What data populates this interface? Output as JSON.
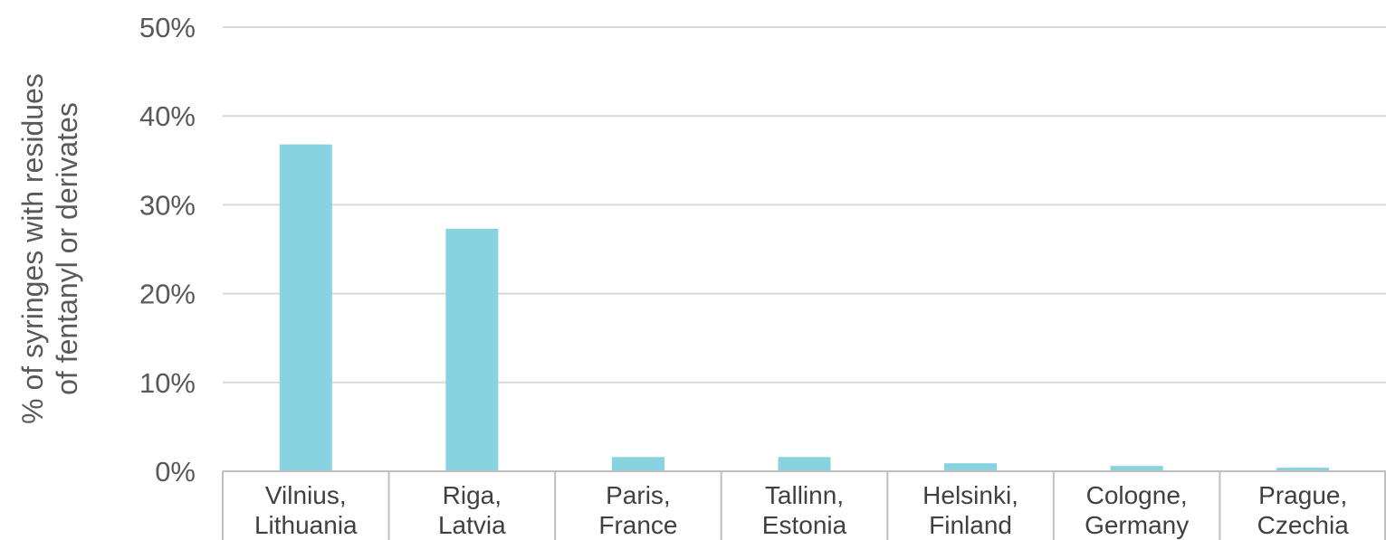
{
  "chart_data": {
    "type": "bar",
    "categories": [
      [
        "Vilnius,",
        "Lithuania"
      ],
      [
        "Riga,",
        "Latvia"
      ],
      [
        "Paris,",
        "France"
      ],
      [
        "Tallinn,",
        "Estonia"
      ],
      [
        "Helsinki,",
        "Finland"
      ],
      [
        "Cologne,",
        "Germany"
      ],
      [
        "Prague,",
        "Czechia"
      ]
    ],
    "values": [
      36.8,
      27.3,
      1.6,
      1.6,
      0.9,
      0.6,
      0.4
    ],
    "ylabel_lines": [
      "% of syringes with residues",
      "of fentanyl or derivates"
    ],
    "ylim": [
      0,
      50
    ],
    "yticks": [
      0,
      10,
      20,
      30,
      40,
      50
    ],
    "ytick_labels": [
      "0%",
      "10%",
      "20%",
      "30%",
      "40%",
      "50%"
    ],
    "grid": true,
    "bar_color": "#87d3e0",
    "gridline_color": "#d9d9d9",
    "axis_color": "#bfbfbf"
  }
}
